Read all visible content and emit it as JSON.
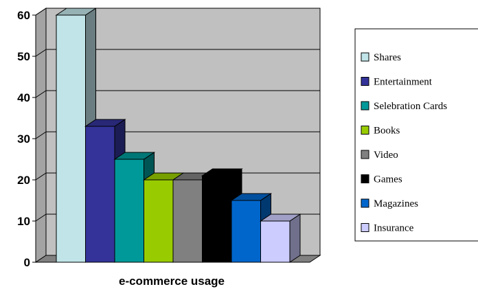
{
  "chart_data": {
    "type": "bar",
    "title": "",
    "xlabel": "e-commerce usage",
    "ylabel": "",
    "ylim": [
      0,
      60
    ],
    "yticks": [
      0,
      10,
      20,
      30,
      40,
      50,
      60
    ],
    "grid": true,
    "legend_position": "right",
    "series": [
      {
        "name": "Shares",
        "value": 60,
        "color": "#c0e4e8"
      },
      {
        "name": "Entertainment",
        "value": 33,
        "color": "#333399"
      },
      {
        "name": "Selebration Cards",
        "value": 25,
        "color": "#009999"
      },
      {
        "name": "Books",
        "value": 20,
        "color": "#99cc00"
      },
      {
        "name": "Video",
        "value": 20,
        "color": "#808080"
      },
      {
        "name": "Games",
        "value": 21,
        "color": "#000000"
      },
      {
        "name": "Magazines",
        "value": 15,
        "color": "#0066cc"
      },
      {
        "name": "Insurance",
        "value": 10,
        "color": "#ccccff"
      }
    ],
    "wall_color": "#c0c0c0"
  }
}
